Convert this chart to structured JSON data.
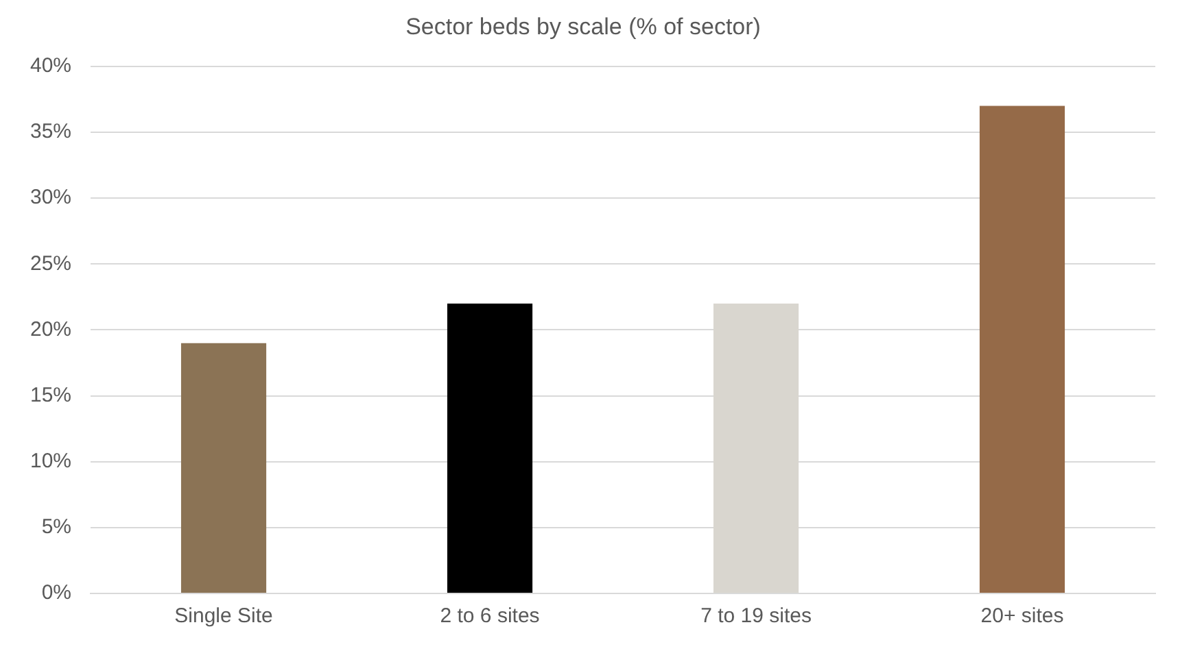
{
  "chart_data": {
    "type": "bar",
    "title": "Sector beds by scale (% of sector)",
    "categories": [
      "Single Site",
      "2 to 6 sites",
      "7 to 19 sites",
      "20+ sites"
    ],
    "values": [
      19,
      22,
      22,
      37
    ],
    "colors": [
      "#8b7355",
      "#000000",
      "#d9d6cf",
      "#956a48"
    ],
    "ylim": [
      0,
      40
    ],
    "yticks": [
      {
        "value": 0,
        "label": "0%"
      },
      {
        "value": 5,
        "label": "5%"
      },
      {
        "value": 10,
        "label": "10%"
      },
      {
        "value": 15,
        "label": "15%"
      },
      {
        "value": 20,
        "label": "20%"
      },
      {
        "value": 25,
        "label": "25%"
      },
      {
        "value": 30,
        "label": "30%"
      },
      {
        "value": 35,
        "label": "35%"
      },
      {
        "value": 40,
        "label": "40%"
      }
    ],
    "grid": "y",
    "legend": false
  }
}
